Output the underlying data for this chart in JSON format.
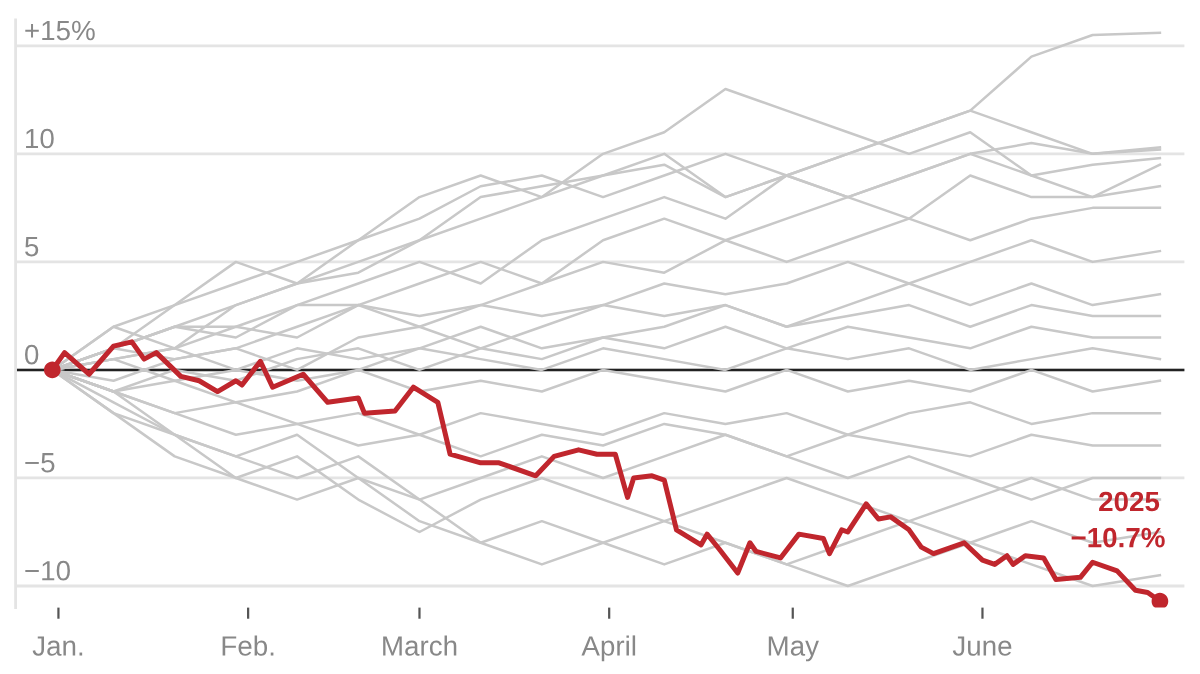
{
  "chart_data": {
    "type": "line",
    "x": [
      "2024-12-31",
      "2025-01-10",
      "2025-01-20",
      "2025-01-30",
      "2025-02-09",
      "2025-02-19",
      "2025-03-01",
      "2025-03-11",
      "2025-03-21",
      "2025-03-31",
      "2025-04-10",
      "2025-04-20",
      "2025-04-30",
      "2025-05-10",
      "2025-05-20",
      "2025-05-30",
      "2025-06-09",
      "2025-06-19",
      "2025-06-30"
    ],
    "series": [
      {
        "color": "#c8c8c8",
        "values": [
          0,
          1,
          2,
          1.5,
          3,
          4,
          5,
          4,
          6,
          7,
          8,
          7,
          9,
          10,
          11,
          12,
          14.5,
          15.5,
          15.6
        ]
      },
      {
        "color": "#c8c8c8",
        "values": [
          0,
          2,
          3,
          4,
          5,
          6,
          8,
          9,
          8,
          10,
          11,
          13,
          12,
          11,
          10,
          11,
          9,
          8,
          9.5
        ]
      },
      {
        "color": "#c8c8c8",
        "values": [
          0,
          1,
          3,
          5,
          4,
          6,
          7,
          8.5,
          9,
          8,
          9,
          10,
          9,
          10,
          11,
          12,
          11,
          10,
          10.2
        ]
      },
      {
        "color": "#c8c8c8",
        "values": [
          0,
          2,
          1,
          3,
          4,
          5,
          6,
          7,
          8,
          9,
          10,
          8,
          9,
          8,
          9,
          10,
          9,
          9.5,
          9.8
        ]
      },
      {
        "color": "#c8c8c8",
        "values": [
          0,
          1,
          2,
          2,
          3,
          3,
          4,
          5,
          4,
          6,
          7,
          6,
          7,
          8,
          7,
          9,
          8,
          8,
          8.5
        ]
      },
      {
        "color": "#c8c8c8",
        "values": [
          0,
          0.5,
          1,
          2,
          1.5,
          3,
          2.5,
          3,
          4,
          5,
          4.5,
          6,
          5,
          6,
          7,
          6,
          7,
          7.5,
          7.5
        ]
      },
      {
        "color": "#c8c8c8",
        "values": [
          0,
          1,
          0.5,
          1,
          2,
          3,
          2,
          3,
          2.5,
          3,
          4,
          3.5,
          4,
          5,
          4,
          5,
          6,
          5,
          5.5
        ]
      },
      {
        "color": "#c8c8c8",
        "values": [
          0,
          -0.5,
          0.5,
          1,
          0,
          1.5,
          2,
          1,
          2,
          3,
          2.5,
          3,
          2,
          3,
          4,
          3,
          4,
          3,
          3.5
        ]
      },
      {
        "color": "#c8c8c8",
        "values": [
          0,
          0.5,
          -0.5,
          0,
          1,
          0.5,
          1,
          2,
          1,
          1.5,
          2,
          3,
          2,
          2.5,
          3,
          2,
          3,
          2.5,
          2.5
        ]
      },
      {
        "color": "#c8c8c8",
        "values": [
          0,
          -1,
          0,
          -0.5,
          0.5,
          1,
          0,
          1,
          0.5,
          1.5,
          1,
          2,
          1,
          2,
          1.5,
          1,
          2,
          1.5,
          1.5
        ]
      },
      {
        "color": "#c8c8c8",
        "values": [
          0,
          0.5,
          1,
          0,
          -0.5,
          0,
          1,
          0.5,
          0,
          1,
          0.5,
          0,
          1,
          0.5,
          1,
          0,
          0.5,
          1,
          0.5
        ]
      },
      {
        "color": "#c8c8c8",
        "values": [
          0,
          -1,
          -0.5,
          -1.5,
          -1,
          0,
          -1,
          -0.5,
          -1,
          0,
          -0.5,
          -1,
          0,
          -1,
          -0.5,
          -1,
          0,
          -1,
          -0.5
        ]
      },
      {
        "color": "#c8c8c8",
        "values": [
          0,
          -1,
          -2,
          -1.5,
          -2.5,
          -2,
          -3,
          -2,
          -2.5,
          -3,
          -2,
          -2.5,
          -2,
          -3,
          -2,
          -1.5,
          -2.5,
          -2,
          -2
        ]
      },
      {
        "color": "#c8c8c8",
        "values": [
          0,
          -1,
          -2,
          -3,
          -2.5,
          -3.5,
          -3,
          -4,
          -3,
          -3.5,
          -2.5,
          -3,
          -4,
          -3,
          -3.5,
          -4,
          -3,
          -3.5,
          -3.5
        ]
      },
      {
        "color": "#c8c8c8",
        "values": [
          0,
          -1.5,
          -3,
          -4,
          -5,
          -4,
          -6,
          -5,
          -4,
          -5,
          -4,
          -3,
          -4,
          -5,
          -4,
          -5,
          -6,
          -5,
          -5
        ]
      },
      {
        "color": "#c8c8c8",
        "values": [
          0,
          -2,
          -3,
          -5,
          -4,
          -6,
          -7.5,
          -6,
          -5,
          -6,
          -7,
          -6,
          -5,
          -6,
          -7,
          -6,
          -5,
          -6,
          -6
        ]
      },
      {
        "color": "#c8c8c8",
        "values": [
          0,
          -1,
          -3,
          -4,
          -3,
          -5,
          -6,
          -8,
          -7,
          -8,
          -7,
          -8,
          -9,
          -8,
          -7,
          -8,
          -7,
          -8,
          -7.5
        ]
      },
      {
        "color": "#c8c8c8",
        "values": [
          0,
          -2,
          -4,
          -5,
          -6,
          -5,
          -7,
          -8,
          -9,
          -8,
          -9,
          -8,
          -9,
          -10,
          -9,
          -8,
          -9,
          -10,
          -9.5
        ]
      },
      {
        "color": "#c8c8c8",
        "values": [
          0,
          1,
          2,
          3,
          4,
          4.5,
          6,
          8,
          8.5,
          9,
          9.5,
          8,
          9,
          8,
          9,
          10,
          10.5,
          10,
          10.3
        ]
      },
      {
        "type": "scatter",
        "color": "#c0262d",
        "marker": "circle",
        "x": [
          "2024-12-31",
          "2025-06-30"
        ],
        "values": [
          0,
          -10.7
        ]
      },
      {
        "name": "2025",
        "color": "#c0262d",
        "x": [
          "2024-12-31",
          "2025-01-02",
          "2025-01-06",
          "2025-01-10",
          "2025-01-13",
          "2025-01-15",
          "2025-01-17",
          "2025-01-21",
          "2025-01-24",
          "2025-01-27",
          "2025-01-30",
          "2025-01-31",
          "2025-02-03",
          "2025-02-05",
          "2025-02-10",
          "2025-02-14",
          "2025-02-19",
          "2025-02-20",
          "2025-02-25",
          "2025-02-28",
          "2025-03-04",
          "2025-03-06",
          "2025-03-11",
          "2025-03-14",
          "2025-03-20",
          "2025-03-23",
          "2025-03-27",
          "2025-03-30",
          "2025-04-02",
          "2025-04-04",
          "2025-04-05",
          "2025-04-08",
          "2025-04-10",
          "2025-04-12",
          "2025-04-16",
          "2025-04-17",
          "2025-04-19",
          "2025-04-22",
          "2025-04-24",
          "2025-04-25",
          "2025-04-29",
          "2025-05-02",
          "2025-05-06",
          "2025-05-07",
          "2025-05-09",
          "2025-05-10",
          "2025-05-13",
          "2025-05-15",
          "2025-05-17",
          "2025-05-20",
          "2025-05-22",
          "2025-05-24",
          "2025-05-29",
          "2025-06-01",
          "2025-06-03",
          "2025-06-05",
          "2025-06-06",
          "2025-06-08",
          "2025-06-11",
          "2025-06-13",
          "2025-06-17",
          "2025-06-19",
          "2025-06-23",
          "2025-06-26",
          "2025-06-28",
          "2025-06-30"
        ],
        "values": [
          0,
          0.8,
          -0.2,
          1.1,
          1.3,
          0.5,
          0.8,
          -0.3,
          -0.5,
          -1.0,
          -0.5,
          -0.7,
          0.4,
          -0.8,
          -0.2,
          -1.5,
          -1.3,
          -2.0,
          -1.9,
          -0.8,
          -1.5,
          -3.9,
          -4.3,
          -4.3,
          -4.9,
          -4.0,
          -3.7,
          -3.9,
          -3.9,
          -5.9,
          -5.0,
          -4.9,
          -5.1,
          -7.4,
          -8.1,
          -7.6,
          -8.3,
          -9.4,
          -8.0,
          -8.4,
          -8.7,
          -7.6,
          -7.8,
          -8.5,
          -7.4,
          -7.5,
          -6.2,
          -6.9,
          -6.8,
          -7.4,
          -8.2,
          -8.5,
          -8.0,
          -8.8,
          -9.0,
          -8.6,
          -9.0,
          -8.6,
          -8.7,
          -9.7,
          -9.6,
          -8.9,
          -9.3,
          -10.2,
          -10.3,
          -10.7
        ]
      }
    ],
    "annotations": [
      {
        "text": "−10.7%",
        "x": "2025-06-30",
        "y": -10.7
      }
    ],
    "xlim": [
      "2024-12-25",
      "2025-07-04"
    ],
    "xticks": [
      {
        "value": "2025-01-01",
        "label": "Jan."
      },
      {
        "value": "2025-02-01",
        "label": "Feb."
      },
      {
        "value": "2025-03-01",
        "label": "March"
      },
      {
        "value": "2025-04-01",
        "label": "April"
      },
      {
        "value": "2025-05-01",
        "label": "May"
      },
      {
        "value": "2025-06-01",
        "label": "June"
      }
    ],
    "ylim": [
      -11,
      16.2
    ],
    "yticks": [
      {
        "value": -10,
        "label": "−10"
      },
      {
        "value": -5,
        "label": "−5"
      },
      0,
      5,
      10,
      {
        "value": 15,
        "label": "+15%"
      }
    ],
    "ref_lines": [
      {
        "axis": "y",
        "value": 0,
        "color": "#222222"
      }
    ],
    "grid": "y",
    "legend": false
  }
}
